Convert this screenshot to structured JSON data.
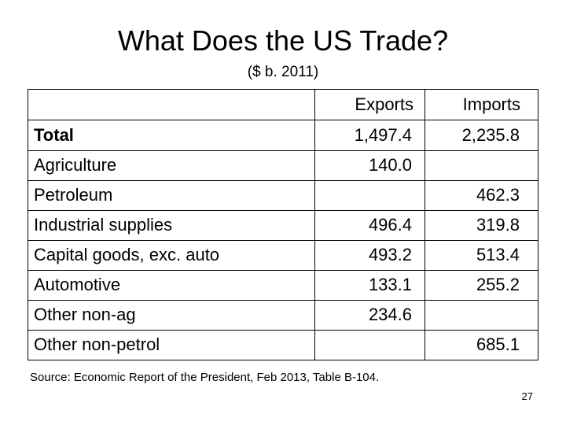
{
  "slide": {
    "title": "What Does the US Trade?",
    "subtitle": "($ b. 2011)",
    "source": "Source:  Economic Report of the President, Feb 2013, Table B-104.",
    "page_number": "27"
  },
  "table": {
    "columns": [
      "Exports",
      "Imports"
    ],
    "rows": [
      {
        "label": "Total",
        "exports": "1,497.4",
        "imports": "2,235.8"
      },
      {
        "label": "Agriculture",
        "exports": "140.0",
        "imports": ""
      },
      {
        "label": "Petroleum",
        "exports": "",
        "imports": "462.3"
      },
      {
        "label": "Industrial supplies",
        "exports": "496.4",
        "imports": "319.8"
      },
      {
        "label": "Capital goods, exc. auto",
        "exports": "493.2",
        "imports": "513.4"
      },
      {
        "label": "Automotive",
        "exports": "133.1",
        "imports": "255.2"
      },
      {
        "label": "Other non-ag",
        "exports": "234.6",
        "imports": ""
      },
      {
        "label": "Other non-petrol",
        "exports": "",
        "imports": "685.1"
      }
    ]
  }
}
